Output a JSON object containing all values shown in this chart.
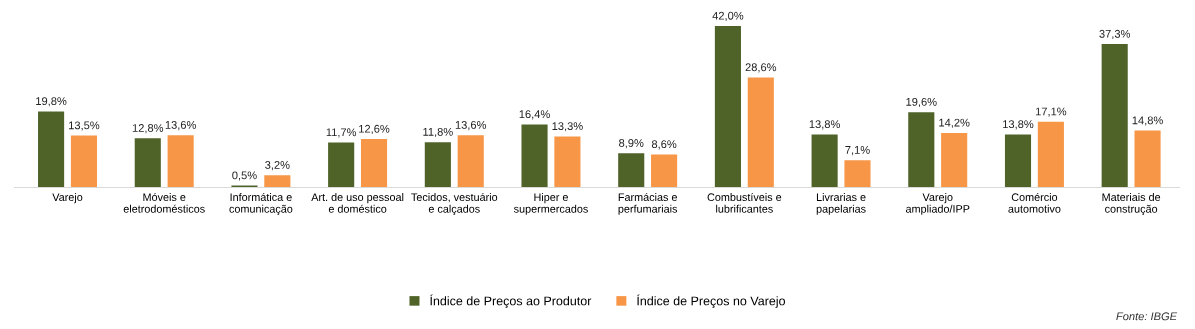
{
  "chart_data": {
    "type": "bar",
    "categories": [
      "Varejo",
      "Móveis e\neletrodomésticos",
      "Informática e\ncomunicação",
      "Art. de uso pessoal\ne doméstico",
      "Tecidos, vestuário\ne calçados",
      "Hiper e\nsupermercados",
      "Farmácias e\nperfumariais",
      "Combustíveis e\nlubrificantes",
      "Livrarias e\npapelarias",
      "Varejo\nampliado/IPP",
      "Comércio\nautomotivo",
      "Materiais de\nconstrução"
    ],
    "series": [
      {
        "name": "Índice de Preços ao Produtor",
        "color": "#4f6228",
        "values": [
          19.8,
          12.8,
          0.5,
          11.7,
          11.8,
          16.4,
          8.9,
          42.0,
          13.8,
          19.6,
          13.8,
          37.3
        ],
        "value_labels": [
          "19,8%",
          "12,8%",
          "0,5%",
          "11,7%",
          "11,8%",
          "16,4%",
          "8,9%",
          "42,0%",
          "13,8%",
          "19,6%",
          "13,8%",
          "37,3%"
        ]
      },
      {
        "name": "Índice de Preços no Varejo",
        "color": "#f79646",
        "values": [
          13.5,
          13.6,
          3.2,
          12.6,
          13.6,
          13.3,
          8.6,
          28.6,
          7.1,
          14.2,
          17.1,
          14.8
        ],
        "value_labels": [
          "13,5%",
          "13,6%",
          "3,2%",
          "12,6%",
          "13,6%",
          "13,3%",
          "8,6%",
          "28,6%",
          "7,1%",
          "14,2%",
          "17,1%",
          "14,8%"
        ]
      }
    ],
    "legend": "bottom",
    "grid": false,
    "tick_labels": "x",
    "annotations": [
      "Fonte: IBGE"
    ]
  }
}
